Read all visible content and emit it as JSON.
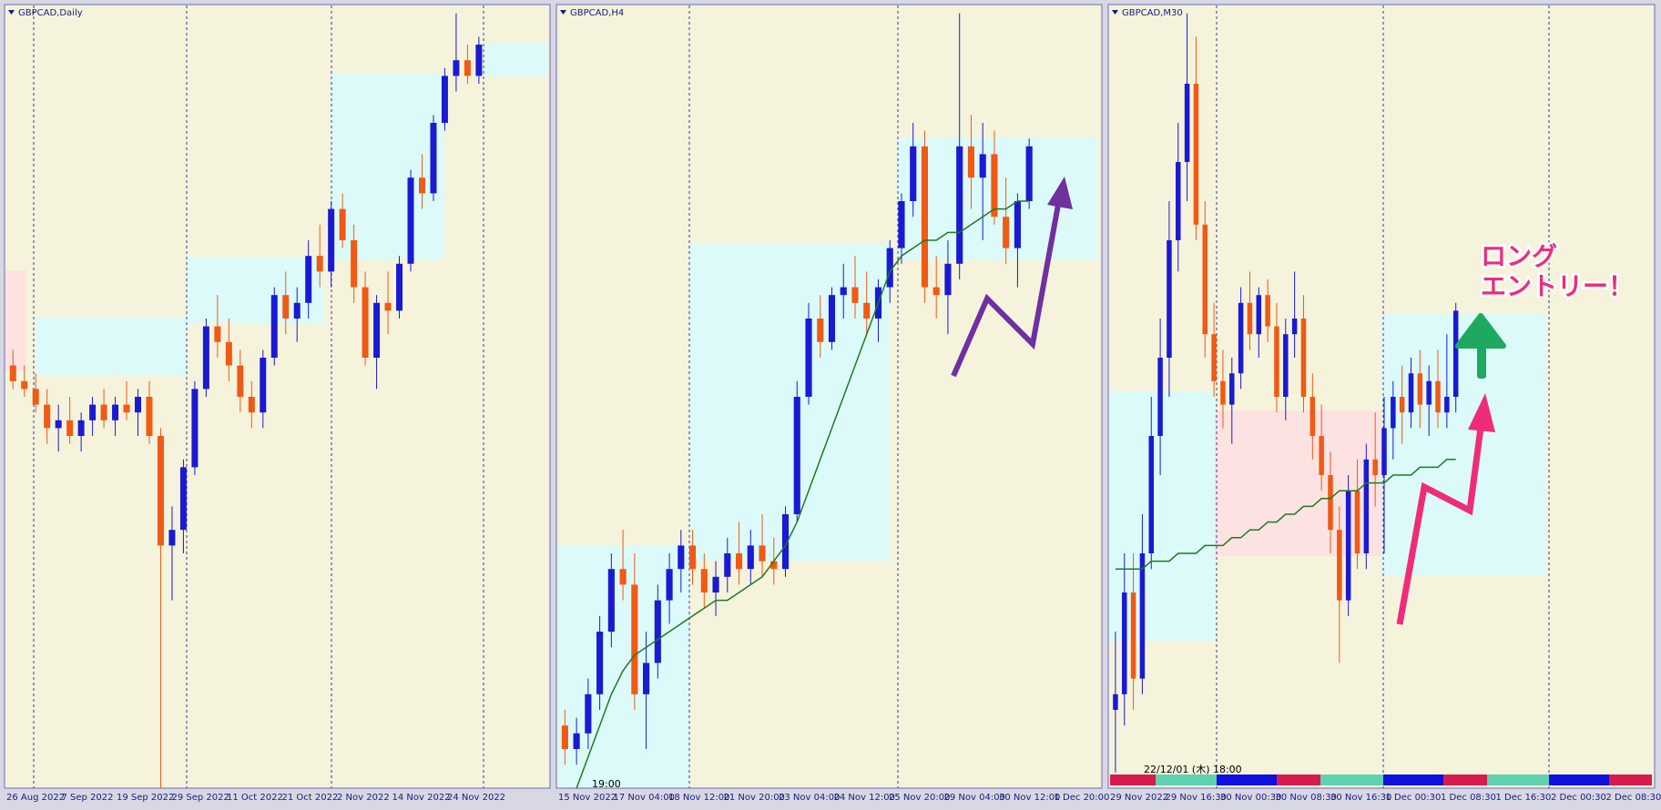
{
  "chart_data": [
    {
      "type": "candlestick",
      "title": "GBPCAD,Daily",
      "up_color": "#1a1ad2",
      "down_color": "#f05a14",
      "ylim": [
        0,
        100
      ],
      "x_labels": [
        "26 Aug 2022",
        "7 Sep 2022",
        "19 Sep 2022",
        "29 Sep 2022",
        "11 Oct 2022",
        "21 Oct 2022",
        "2 Nov 2022",
        "14 Nov 2022",
        "24 Nov 2022"
      ],
      "open": [
        54,
        52,
        51,
        49,
        46,
        47,
        45,
        47,
        49,
        47,
        49,
        48,
        50,
        45,
        31,
        33,
        41,
        51,
        59,
        57,
        54,
        50,
        48,
        55,
        63,
        60,
        62,
        68,
        66,
        74,
        70,
        64,
        55,
        62,
        61,
        67,
        78,
        76,
        85,
        91,
        93,
        91
      ],
      "high": [
        56,
        54,
        53,
        51,
        49,
        50,
        48,
        50,
        51,
        50,
        52,
        51,
        52,
        46,
        36,
        42,
        52,
        60,
        63,
        60,
        56,
        52,
        56,
        64,
        66,
        64,
        70,
        72,
        75,
        76,
        72,
        66,
        63,
        66,
        68,
        79,
        81,
        86,
        92,
        99,
        95,
        96
      ],
      "low": [
        51,
        50,
        48,
        44,
        43,
        44,
        43,
        45,
        46,
        45,
        47,
        45,
        44,
        0,
        24,
        30,
        40,
        50,
        55,
        52,
        48,
        46,
        46,
        54,
        58,
        57,
        60,
        64,
        64,
        69,
        62,
        54,
        51,
        58,
        60,
        66,
        74,
        75,
        84,
        89,
        90,
        90
      ],
      "close": [
        52,
        51,
        49,
        46,
        47,
        45,
        47,
        49,
        47,
        49,
        48,
        50,
        45,
        31,
        33,
        41,
        51,
        59,
        57,
        54,
        50,
        48,
        55,
        63,
        60,
        62,
        68,
        66,
        74,
        70,
        64,
        55,
        62,
        61,
        67,
        78,
        76,
        85,
        91,
        93,
        91,
        95
      ]
    },
    {
      "type": "candlestick",
      "title": "GBPCAD,H4",
      "up_color": "#1a1ad2",
      "down_color": "#f05a14",
      "ylim": [
        0,
        100
      ],
      "time_label": "19:00",
      "ma_color": "#1f7a1f",
      "x_labels": [
        "15 Nov 2022",
        "17 Nov 04:00",
        "18 Nov 12:00",
        "21 Nov 20:00",
        "23 Nov 04:00",
        "24 Nov 12:00",
        "25 Nov 20:00",
        "29 Nov 04:00",
        "30 Nov 12:00",
        "1 Dec 20:00"
      ],
      "open": [
        8,
        5,
        7,
        12,
        20,
        28,
        26,
        12,
        16,
        24,
        28,
        31,
        28,
        25,
        27,
        30,
        28,
        31,
        29,
        28,
        35,
        50,
        60,
        57,
        63,
        64,
        62,
        60,
        64,
        69,
        75,
        82,
        64,
        63,
        67,
        82,
        78,
        81,
        73,
        69,
        75
      ],
      "high": [
        10,
        9,
        14,
        22,
        30,
        33,
        30,
        20,
        26,
        30,
        33,
        33,
        30,
        29,
        32,
        34,
        33,
        35,
        32,
        36,
        52,
        62,
        63,
        64,
        67,
        68,
        66,
        65,
        70,
        76,
        85,
        84,
        68,
        70,
        99,
        86,
        85,
        84,
        78,
        76,
        83
      ],
      "low": [
        3,
        3,
        5,
        10,
        18,
        24,
        10,
        5,
        14,
        21,
        25,
        26,
        23,
        22,
        25,
        26,
        26,
        27,
        26,
        27,
        34,
        49,
        55,
        56,
        60,
        60,
        58,
        57,
        62,
        67,
        73,
        62,
        60,
        58,
        65,
        74,
        70,
        72,
        67,
        64,
        74
      ],
      "close": [
        5,
        7,
        12,
        20,
        28,
        26,
        12,
        16,
        24,
        28,
        31,
        28,
        25,
        27,
        30,
        28,
        31,
        29,
        28,
        35,
        50,
        60,
        57,
        63,
        64,
        62,
        60,
        64,
        69,
        75,
        82,
        64,
        63,
        67,
        82,
        78,
        81,
        73,
        69,
        75,
        82
      ],
      "ma": [
        null,
        0,
        4,
        8,
        12,
        15,
        17,
        18,
        19,
        20,
        21,
        22,
        23,
        24,
        24,
        25,
        26,
        27,
        29,
        31,
        34,
        38,
        42,
        46,
        50,
        54,
        58,
        62,
        66,
        68,
        69,
        70,
        70,
        71,
        71,
        72,
        73,
        74,
        74,
        75,
        75
      ]
    },
    {
      "type": "candlestick",
      "title": "GBPCAD,M30",
      "up_color": "#1a1ad2",
      "down_color": "#f05a14",
      "ylim": [
        0,
        100
      ],
      "time_label": "22/12/01 (木) 18:00",
      "ma_color": "#1f7a1f",
      "annotations": [
        "ロング",
        "エントリー！"
      ],
      "x_labels": [
        "29 Nov 2022",
        "29 Nov 16:30",
        "30 Nov 00:30",
        "30 Nov 08:30",
        "30 Nov 16:30",
        "1 Dec 00:30",
        "1 Dec 08:30",
        "1 Dec 16:30",
        "2 Dec 00:30",
        "2 Dec 08:30"
      ],
      "open": [
        10,
        12,
        25,
        14,
        30,
        45,
        55,
        70,
        80,
        90,
        72,
        58,
        52,
        49,
        53,
        62,
        58,
        63,
        59,
        50,
        58,
        60,
        50,
        45,
        40,
        33,
        24,
        38,
        30,
        42,
        40,
        46,
        50,
        48,
        53,
        49,
        52,
        48,
        50
      ],
      "high": [
        20,
        30,
        30,
        35,
        50,
        60,
        75,
        85,
        99,
        96,
        75,
        62,
        56,
        55,
        64,
        66,
        64,
        65,
        62,
        60,
        66,
        63,
        53,
        49,
        43,
        36,
        40,
        42,
        44,
        48,
        50,
        52,
        54,
        55,
        56,
        54,
        56,
        58,
        62
      ],
      "low": [
        2,
        8,
        10,
        12,
        28,
        40,
        50,
        66,
        75,
        70,
        55,
        50,
        46,
        44,
        51,
        56,
        55,
        57,
        48,
        47,
        55,
        48,
        42,
        38,
        30,
        16,
        22,
        28,
        28,
        36,
        30,
        42,
        44,
        46,
        46,
        45,
        46,
        46,
        48
      ],
      "close": [
        12,
        25,
        14,
        30,
        45,
        55,
        70,
        80,
        90,
        72,
        58,
        52,
        49,
        53,
        62,
        58,
        63,
        59,
        50,
        58,
        60,
        50,
        45,
        40,
        33,
        24,
        38,
        30,
        42,
        40,
        46,
        50,
        48,
        53,
        49,
        52,
        48,
        50,
        61
      ],
      "ma": [
        28,
        28,
        28,
        28,
        29,
        29,
        29,
        30,
        30,
        30,
        31,
        31,
        31,
        32,
        32,
        33,
        33,
        34,
        34,
        35,
        35,
        36,
        36,
        37,
        37,
        38,
        38,
        38,
        39,
        39,
        39,
        40,
        40,
        40,
        41,
        41,
        41,
        42,
        42
      ]
    }
  ]
}
